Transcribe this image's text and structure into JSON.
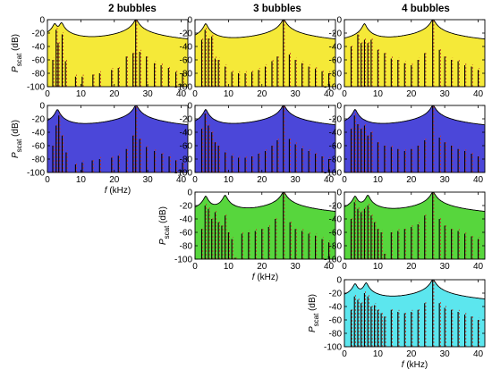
{
  "column_titles": [
    "2 bubbles",
    "3 bubbles",
    "4 bubbles"
  ],
  "colors": {
    "yellow": "#f5e938",
    "blue": "#4b47d9",
    "green": "#57d63d",
    "cyan": "#5ce6ee",
    "envelope": "#000000",
    "dashed": "#c0392b"
  },
  "chart_data": [
    {
      "type": "area",
      "row": 1,
      "col": 1,
      "bubbles": 2,
      "fill": "yellow",
      "xlabel": "",
      "ylabel": "P scat (dB)",
      "xlim": [
        0,
        42
      ],
      "ylim": [
        -100,
        0
      ],
      "xticks": [
        "0",
        "10",
        "20",
        "30",
        "40"
      ],
      "yticks": [
        "0",
        "-20",
        "-40",
        "-60",
        "-80",
        "-100"
      ],
      "envelope_peaks_khz": [
        2.2,
        4.2,
        26.5
      ],
      "lines": [
        [
          1.6,
          -60
        ],
        [
          2.6,
          -15
        ],
        [
          3.2,
          -35
        ],
        [
          4.4,
          -22
        ],
        [
          5.4,
          -62
        ],
        [
          8.4,
          -85
        ],
        [
          10.4,
          -85
        ],
        [
          13.6,
          -82
        ],
        [
          15.6,
          -80
        ],
        [
          19.2,
          -75
        ],
        [
          21.2,
          -72
        ],
        [
          23.6,
          -55
        ],
        [
          25.6,
          -50
        ],
        [
          26.4,
          0
        ],
        [
          27.6,
          -48
        ],
        [
          29.6,
          -55
        ],
        [
          32,
          -65
        ],
        [
          34,
          -68
        ],
        [
          36.2,
          -72
        ],
        [
          38.4,
          -78
        ],
        [
          40.4,
          -80
        ]
      ]
    },
    {
      "type": "area",
      "row": 1,
      "col": 2,
      "bubbles": 3,
      "fill": "yellow",
      "xlabel": "",
      "ylabel": "",
      "xlim": [
        0,
        42
      ],
      "ylim": [
        -100,
        0
      ],
      "xticks": [
        "0",
        "10",
        "20",
        "30",
        "40"
      ],
      "yticks": [
        "0",
        "-20",
        "-40",
        "-60",
        "-80",
        "-100"
      ],
      "envelope_peaks_khz": [
        3.2,
        26.5
      ],
      "lines": [
        [
          2,
          -30
        ],
        [
          3,
          -15
        ],
        [
          4,
          -28
        ],
        [
          5,
          -25
        ],
        [
          6,
          -58
        ],
        [
          7,
          -60
        ],
        [
          9,
          -70
        ],
        [
          11,
          -78
        ],
        [
          13,
          -80
        ],
        [
          15,
          -80
        ],
        [
          17,
          -78
        ],
        [
          19,
          -75
        ],
        [
          21,
          -70
        ],
        [
          23,
          -62
        ],
        [
          24.6,
          -55
        ],
        [
          26.4,
          0
        ],
        [
          28.2,
          -52
        ],
        [
          30,
          -60
        ],
        [
          32,
          -65
        ],
        [
          34,
          -70
        ],
        [
          36,
          -73
        ],
        [
          38,
          -77
        ],
        [
          40,
          -80
        ]
      ]
    },
    {
      "type": "area",
      "row": 1,
      "col": 3,
      "bubbles": 4,
      "fill": "yellow",
      "xlabel": "",
      "ylabel": "",
      "xlim": [
        0,
        42
      ],
      "ylim": [
        -100,
        0
      ],
      "xticks": [
        "0",
        "10",
        "20",
        "30",
        "40"
      ],
      "yticks": [
        "0",
        "-20",
        "-40",
        "-60",
        "-80",
        "-100"
      ],
      "envelope_peaks_khz": [
        6.0,
        26.5
      ],
      "lines": [
        [
          2,
          -40
        ],
        [
          4,
          -22
        ],
        [
          5,
          -35
        ],
        [
          6,
          -30
        ],
        [
          7,
          -35
        ],
        [
          8,
          -30
        ],
        [
          10,
          -45
        ],
        [
          12,
          -50
        ],
        [
          14,
          -58
        ],
        [
          16,
          -60
        ],
        [
          18,
          -65
        ],
        [
          20,
          -68
        ],
        [
          22,
          -60
        ],
        [
          24,
          -50
        ],
        [
          26.4,
          0
        ],
        [
          28.4,
          -45
        ],
        [
          30,
          -55
        ],
        [
          32,
          -60
        ],
        [
          34,
          -62
        ],
        [
          36,
          -68
        ],
        [
          38,
          -70
        ],
        [
          40,
          -75
        ]
      ]
    },
    {
      "type": "area",
      "row": 2,
      "col": 1,
      "bubbles": 2,
      "fill": "blue",
      "xlabel": "f (kHz)",
      "ylabel": "P scat (dB)",
      "xlim": [
        0,
        42
      ],
      "ylim": [
        -100,
        0
      ],
      "xticks": [
        "0",
        "10",
        "20",
        "30",
        "40"
      ],
      "yticks": [
        "0",
        "-20",
        "-40",
        "-60",
        "-80",
        "-100"
      ],
      "envelope_peaks_khz": [
        3.0,
        26.5
      ],
      "lines": [
        [
          1.6,
          -60
        ],
        [
          2.6,
          -30
        ],
        [
          3.4,
          -15
        ],
        [
          4.4,
          -45
        ],
        [
          5.6,
          -70
        ],
        [
          8.4,
          -88
        ],
        [
          10.4,
          -85
        ],
        [
          13.4,
          -82
        ],
        [
          15.6,
          -80
        ],
        [
          19.2,
          -78
        ],
        [
          21.2,
          -75
        ],
        [
          23.6,
          -65
        ],
        [
          25.6,
          -45
        ],
        [
          26.4,
          -2
        ],
        [
          27.6,
          -50
        ],
        [
          29.6,
          -62
        ],
        [
          32,
          -68
        ],
        [
          34.2,
          -72
        ],
        [
          36.4,
          -76
        ],
        [
          38.4,
          -82
        ],
        [
          40.4,
          -85
        ]
      ]
    },
    {
      "type": "area",
      "row": 2,
      "col": 2,
      "bubbles": 3,
      "fill": "blue",
      "xlabel": "",
      "ylabel": "",
      "xlim": [
        0,
        42
      ],
      "ylim": [
        -100,
        0
      ],
      "xticks": [
        "0",
        "10",
        "20",
        "30",
        "40"
      ],
      "yticks": [
        "0",
        "-20",
        "-40",
        "-60",
        "-80",
        "-100"
      ],
      "envelope_peaks_khz": [
        3.2,
        26.5
      ],
      "lines": [
        [
          2,
          -35
        ],
        [
          3,
          -12
        ],
        [
          4,
          -30
        ],
        [
          5,
          -40
        ],
        [
          6,
          -55
        ],
        [
          7,
          -60
        ],
        [
          9,
          -70
        ],
        [
          11,
          -75
        ],
        [
          13,
          -78
        ],
        [
          15,
          -78
        ],
        [
          17,
          -76
        ],
        [
          19,
          -72
        ],
        [
          21,
          -68
        ],
        [
          23,
          -60
        ],
        [
          24.6,
          -52
        ],
        [
          26.4,
          0
        ],
        [
          28.2,
          -50
        ],
        [
          30,
          -58
        ],
        [
          32,
          -64
        ],
        [
          34,
          -68
        ],
        [
          36,
          -72
        ],
        [
          38,
          -76
        ],
        [
          40,
          -80
        ]
      ]
    },
    {
      "type": "area",
      "row": 2,
      "col": 3,
      "bubbles": 4,
      "fill": "blue",
      "xlabel": "",
      "ylabel": "",
      "xlim": [
        0,
        42
      ],
      "ylim": [
        -100,
        0
      ],
      "xticks": [
        "0",
        "10",
        "20",
        "30",
        "40"
      ],
      "yticks": [
        "0",
        "-20",
        "-40",
        "-60",
        "-80",
        "-100"
      ],
      "envelope_peaks_khz": [
        3.2,
        26.5
      ],
      "lines": [
        [
          2,
          -35
        ],
        [
          3,
          -15
        ],
        [
          4,
          -28
        ],
        [
          5,
          -35
        ],
        [
          6,
          -30
        ],
        [
          7,
          -45
        ],
        [
          8,
          -40
        ],
        [
          10,
          -55
        ],
        [
          12,
          -60
        ],
        [
          14,
          -62
        ],
        [
          16,
          -65
        ],
        [
          18,
          -68
        ],
        [
          20,
          -65
        ],
        [
          22,
          -60
        ],
        [
          24,
          -52
        ],
        [
          26.4,
          0
        ],
        [
          28.4,
          -48
        ],
        [
          30,
          -55
        ],
        [
          32,
          -60
        ],
        [
          34,
          -65
        ],
        [
          36,
          -68
        ],
        [
          38,
          -72
        ],
        [
          40,
          -76
        ]
      ]
    },
    {
      "type": "area",
      "row": 3,
      "col": 2,
      "bubbles": 3,
      "fill": "green",
      "xlabel": "f (kHz)",
      "ylabel": "P scat (dB)",
      "xlim": [
        0,
        42
      ],
      "ylim": [
        -100,
        0
      ],
      "xticks": [
        "0",
        "10",
        "20",
        "30",
        "40"
      ],
      "yticks": [
        "0",
        "-20",
        "-40",
        "-60",
        "-80",
        "-100"
      ],
      "envelope_peaks_khz": [
        3.2,
        9.0,
        26.5
      ],
      "lines": [
        [
          2,
          -55
        ],
        [
          3,
          -20
        ],
        [
          4,
          -25
        ],
        [
          5,
          -40
        ],
        [
          6,
          -30
        ],
        [
          7,
          -45
        ],
        [
          8,
          -50
        ],
        [
          9,
          -35
        ],
        [
          10,
          -60
        ],
        [
          11,
          -70
        ],
        [
          12,
          -98
        ],
        [
          14,
          -62
        ],
        [
          16,
          -60
        ],
        [
          18,
          -58
        ],
        [
          20,
          -55
        ],
        [
          22,
          -52
        ],
        [
          24,
          -40
        ],
        [
          26.4,
          0
        ],
        [
          28.4,
          -45
        ],
        [
          30,
          -55
        ],
        [
          32,
          -58
        ],
        [
          34,
          -62
        ],
        [
          36,
          -65
        ],
        [
          38,
          -70
        ],
        [
          40,
          -75
        ]
      ]
    },
    {
      "type": "area",
      "row": 3,
      "col": 3,
      "bubbles": 4,
      "fill": "green",
      "xlabel": "",
      "ylabel": "",
      "xlim": [
        0,
        42
      ],
      "ylim": [
        -100,
        0
      ],
      "xticks": [
        "0",
        "10",
        "20",
        "30",
        "40"
      ],
      "yticks": [
        "0",
        "-20",
        "-40",
        "-60",
        "-80",
        "-100"
      ],
      "envelope_peaks_khz": [
        3.2,
        7.0,
        26.5
      ],
      "lines": [
        [
          2,
          -40
        ],
        [
          3,
          -15
        ],
        [
          4,
          -25
        ],
        [
          5,
          -30
        ],
        [
          6,
          -25
        ],
        [
          7,
          -20
        ],
        [
          8,
          -35
        ],
        [
          9,
          -45
        ],
        [
          10,
          -55
        ],
        [
          11,
          -60
        ],
        [
          12,
          -92
        ],
        [
          14,
          -60
        ],
        [
          16,
          -58
        ],
        [
          18,
          -55
        ],
        [
          20,
          -52
        ],
        [
          22,
          -48
        ],
        [
          24,
          -35
        ],
        [
          26.4,
          0
        ],
        [
          28.4,
          -40
        ],
        [
          30,
          -50
        ],
        [
          32,
          -55
        ],
        [
          34,
          -58
        ],
        [
          36,
          -62
        ],
        [
          38,
          -66
        ],
        [
          40,
          -70
        ]
      ]
    },
    {
      "type": "area",
      "row": 4,
      "col": 3,
      "bubbles": 4,
      "fill": "cyan",
      "xlabel": "f (kHz)",
      "ylabel": "P scat (dB)",
      "xlim": [
        0,
        42
      ],
      "ylim": [
        -100,
        0
      ],
      "xticks": [
        "0",
        "10",
        "20",
        "30",
        "40"
      ],
      "yticks": [
        "0",
        "-20",
        "-40",
        "-60",
        "-80",
        "-100"
      ],
      "envelope_peaks_khz": [
        3.2,
        6.5,
        26.5
      ],
      "lines": [
        [
          2,
          -45
        ],
        [
          3,
          -25
        ],
        [
          4,
          -30
        ],
        [
          5,
          -35
        ],
        [
          6,
          -20
        ],
        [
          7,
          -25
        ],
        [
          8,
          -40
        ],
        [
          9,
          -38
        ],
        [
          10,
          -45
        ],
        [
          11,
          -50
        ],
        [
          12,
          -55
        ],
        [
          14,
          -45
        ],
        [
          16,
          -48
        ],
        [
          18,
          -50
        ],
        [
          20,
          -48
        ],
        [
          22,
          -45
        ],
        [
          24,
          -35
        ],
        [
          26.4,
          0
        ],
        [
          28.4,
          -35
        ],
        [
          30,
          -42
        ],
        [
          32,
          -45
        ],
        [
          34,
          -48
        ],
        [
          36,
          -52
        ],
        [
          38,
          -55
        ],
        [
          40,
          -60
        ]
      ]
    }
  ]
}
